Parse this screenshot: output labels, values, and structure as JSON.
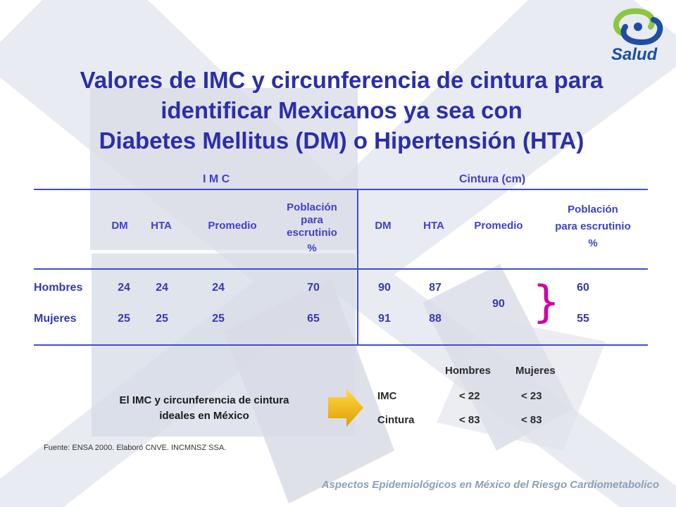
{
  "title": {
    "line1": "Valores de IMC y circunferencia de cintura para",
    "line2": "identificar  Mexicanos ya sea con",
    "line3": "Diabetes Mellitus (DM) o Hipertensión (HTA)"
  },
  "logo": {
    "text": "Salud",
    "icon": "salud-swirl-icon"
  },
  "table": {
    "group_imc": "I M C",
    "group_cintura": "Cintura (cm)",
    "columns": {
      "dm": "DM",
      "hta": "HTA",
      "promedio": "Promedio",
      "poblacion_imc": [
        "Población",
        "para",
        "escrutinio",
        "%"
      ],
      "dm2": "DM",
      "hta2": "HTA",
      "promedio2": "Promedio",
      "poblacion_cintura": [
        "Población",
        "para escrutinio",
        "%"
      ]
    },
    "rows": [
      {
        "label": "Hombres",
        "dm": "24",
        "hta": "24",
        "promedio": "24",
        "poblacion": "70",
        "dm2": "90",
        "hta2": "87",
        "poblacion2": "60"
      },
      {
        "label": "Mujeres",
        "dm": "25",
        "hta": "25",
        "promedio": "25",
        "poblacion": "65",
        "dm2": "91",
        "hta2": "88",
        "poblacion2": "55"
      }
    ],
    "promedio_cintura_merged": "90",
    "brace": "}"
  },
  "ideal": {
    "text_line1": "El IMC y circunferencia de cintura",
    "text_line2": "ideales en México",
    "arrow_icon": "arrow-right-icon",
    "headers": [
      "Hombres",
      "Mujeres"
    ],
    "rows": [
      {
        "label": "IMC",
        "hombres": "< 22",
        "mujeres": "< 23"
      },
      {
        "label": "Cintura",
        "hombres": "< 83",
        "mujeres": "< 83"
      }
    ]
  },
  "source": "Fuente: ENSA 2000. Elaboró CNVE. INCMNSZ  SSA.",
  "footer": "Aspectos Epidemiológicos en México del Riesgo Cardiometabolico",
  "colors": {
    "title": "#2b2fa8",
    "table_lines": "#3b4fd0",
    "brace": "#d000a8",
    "arrow": "#f0b800",
    "background_shape": "#d7dce6"
  }
}
